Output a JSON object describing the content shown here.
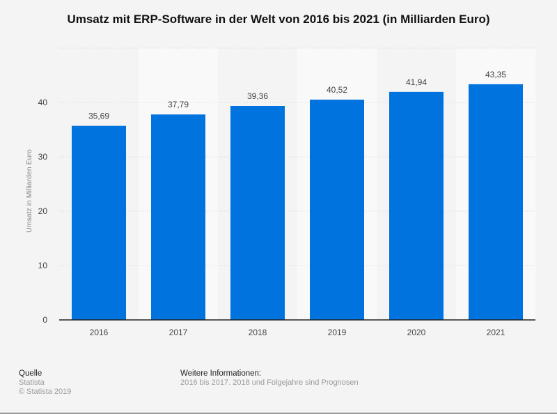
{
  "chart_data": {
    "type": "bar",
    "title": "Umsatz mit ERP-Software in der Welt von 2016 bis 2021 (in Milliarden Euro)",
    "xlabel": "",
    "ylabel": "Umsatz in Milliarden Euro",
    "categories": [
      "2016",
      "2017",
      "2018",
      "2019",
      "2020",
      "2021"
    ],
    "values": [
      35.69,
      37.79,
      39.36,
      40.52,
      41.94,
      43.35
    ],
    "data_labels": [
      "35,69",
      "37,79",
      "39,36",
      "40,52",
      "41,94",
      "43,35"
    ],
    "yticks": [
      0,
      10,
      20,
      30,
      40
    ],
    "ylim": [
      0,
      50
    ],
    "grid": true,
    "bar_color": "#0073de"
  },
  "footer": {
    "source_heading": "Quelle",
    "source": "Statista",
    "copyright": "© Statista 2019",
    "info_heading": "Weitere Informationen:",
    "info": "2016 bis 2017. 2018 und Folgejahre sind Prognosen"
  }
}
